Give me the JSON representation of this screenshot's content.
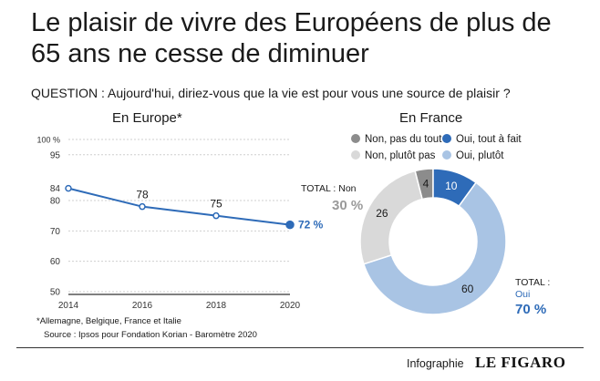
{
  "header": {
    "title": "Le plaisir de vivre des Européens de plus de 65 ans ne cesse de diminuer",
    "question": "QUESTION : Aujourd'hui, diriez-vous que la vie est pour vous une source de plaisir ?"
  },
  "chart_data": [
    {
      "type": "line",
      "title": "En Europe*",
      "x": [
        "2014",
        "2016",
        "2018",
        "2020"
      ],
      "values": [
        84,
        78,
        75,
        72
      ],
      "data_labels": [
        "84",
        "78",
        "75",
        "72 %"
      ],
      "yticks": [
        "100 %",
        "95",
        "80",
        "70",
        "60",
        "50"
      ],
      "ytick_values": [
        100,
        95,
        80,
        70,
        60,
        50
      ],
      "ylim": [
        50,
        100
      ],
      "color": "#2e6bb8",
      "grid": true
    },
    {
      "type": "pie",
      "title": "En France",
      "slices": [
        {
          "label": "Non, pas du tout",
          "value": 4,
          "color": "#8c8c8c"
        },
        {
          "label": "Oui, tout à fait",
          "value": 10,
          "color": "#2e6bb8"
        },
        {
          "label": "Oui, plutôt",
          "value": 60,
          "color": "#a9c4e4"
        },
        {
          "label": "Non, plutôt pas",
          "value": 26,
          "color": "#d9d9d9"
        }
      ],
      "legend": [
        {
          "label": "Non, pas du tout",
          "color": "#8c8c8c"
        },
        {
          "label": "Oui, tout à fait",
          "color": "#2e6bb8"
        },
        {
          "label": "Non, plutôt pas",
          "color": "#d9d9d9"
        },
        {
          "label": "Oui, plutôt",
          "color": "#a9c4e4"
        }
      ],
      "totals": {
        "non_label": "TOTAL : Non",
        "non_value": "30 %",
        "oui_label_1": "TOTAL :",
        "oui_label_2": "Oui",
        "oui_value": "70 %"
      }
    }
  ],
  "footer": {
    "footnote": "*Allemagne, Belgique, France et Italie",
    "source": "Source : Ipsos pour Fondation Korian - Baromètre 2020",
    "credit_label": "Infographie",
    "credit_brand": "LE FIGARO"
  }
}
